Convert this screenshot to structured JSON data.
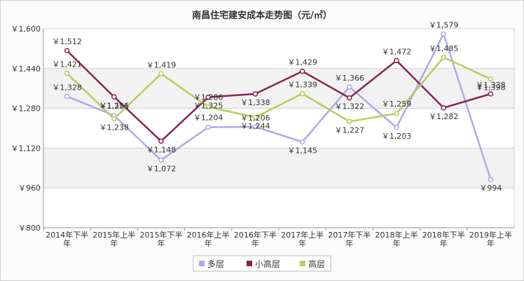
{
  "chart_data": {
    "type": "line",
    "title": "南昌住宅建安成本走势图（元/㎡）",
    "xlabel": "",
    "ylabel": "",
    "ylim": [
      800,
      1600
    ],
    "yticks": [
      800,
      960,
      1120,
      1280,
      1440,
      1600
    ],
    "ytick_labels": [
      "￥800",
      "￥960",
      "￥1,120",
      "￥1,280",
      "￥1,440",
      "￥1,600"
    ],
    "categories": [
      "2014年下半年",
      "2015年上半年",
      "2015年下半年",
      "2016年上半年",
      "2016年下半年",
      "2017年上半年",
      "2017年下半年",
      "2018年上半年",
      "2018年下半年",
      "2019年上半年"
    ],
    "grid": true,
    "legend_position": "bottom",
    "value_prefix": "￥",
    "series": [
      {
        "name": "多层",
        "color": "#aaaaee",
        "values": [
          1328,
          1251,
          1072,
          1204,
          1206,
          1145,
          1366,
          1203,
          1579,
          994
        ],
        "labels": [
          "￥1,328",
          "￥1,251",
          "￥1,072",
          "￥1,204",
          "￥1,206",
          "￥1,145",
          "￥1,366",
          "￥1,203",
          "￥1,579",
          "￥994"
        ]
      },
      {
        "name": "小高层",
        "color": "#8b2252",
        "values": [
          1512,
          1326,
          1148,
          1325,
          1338,
          1429,
          1322,
          1472,
          1282,
          1338
        ],
        "labels": [
          "￥1,512",
          "￥1,326",
          "￥1,148",
          "￥1,325",
          "￥1,338",
          "￥1,429",
          "￥1,322",
          "￥1,472",
          "￥1,282",
          "￥1,338"
        ]
      },
      {
        "name": "高层",
        "color": "#b8cc5a",
        "values": [
          1421,
          1238,
          1419,
          1286,
          1244,
          1339,
          1227,
          1259,
          1485,
          1398
        ],
        "labels": [
          "￥1,421",
          "￥1,238",
          "￥1,419",
          "￥1,286",
          "￥1,244",
          "￥1,339",
          "￥1,227",
          "￥1,259",
          "￥1,485",
          "￥1,398"
        ]
      }
    ]
  }
}
